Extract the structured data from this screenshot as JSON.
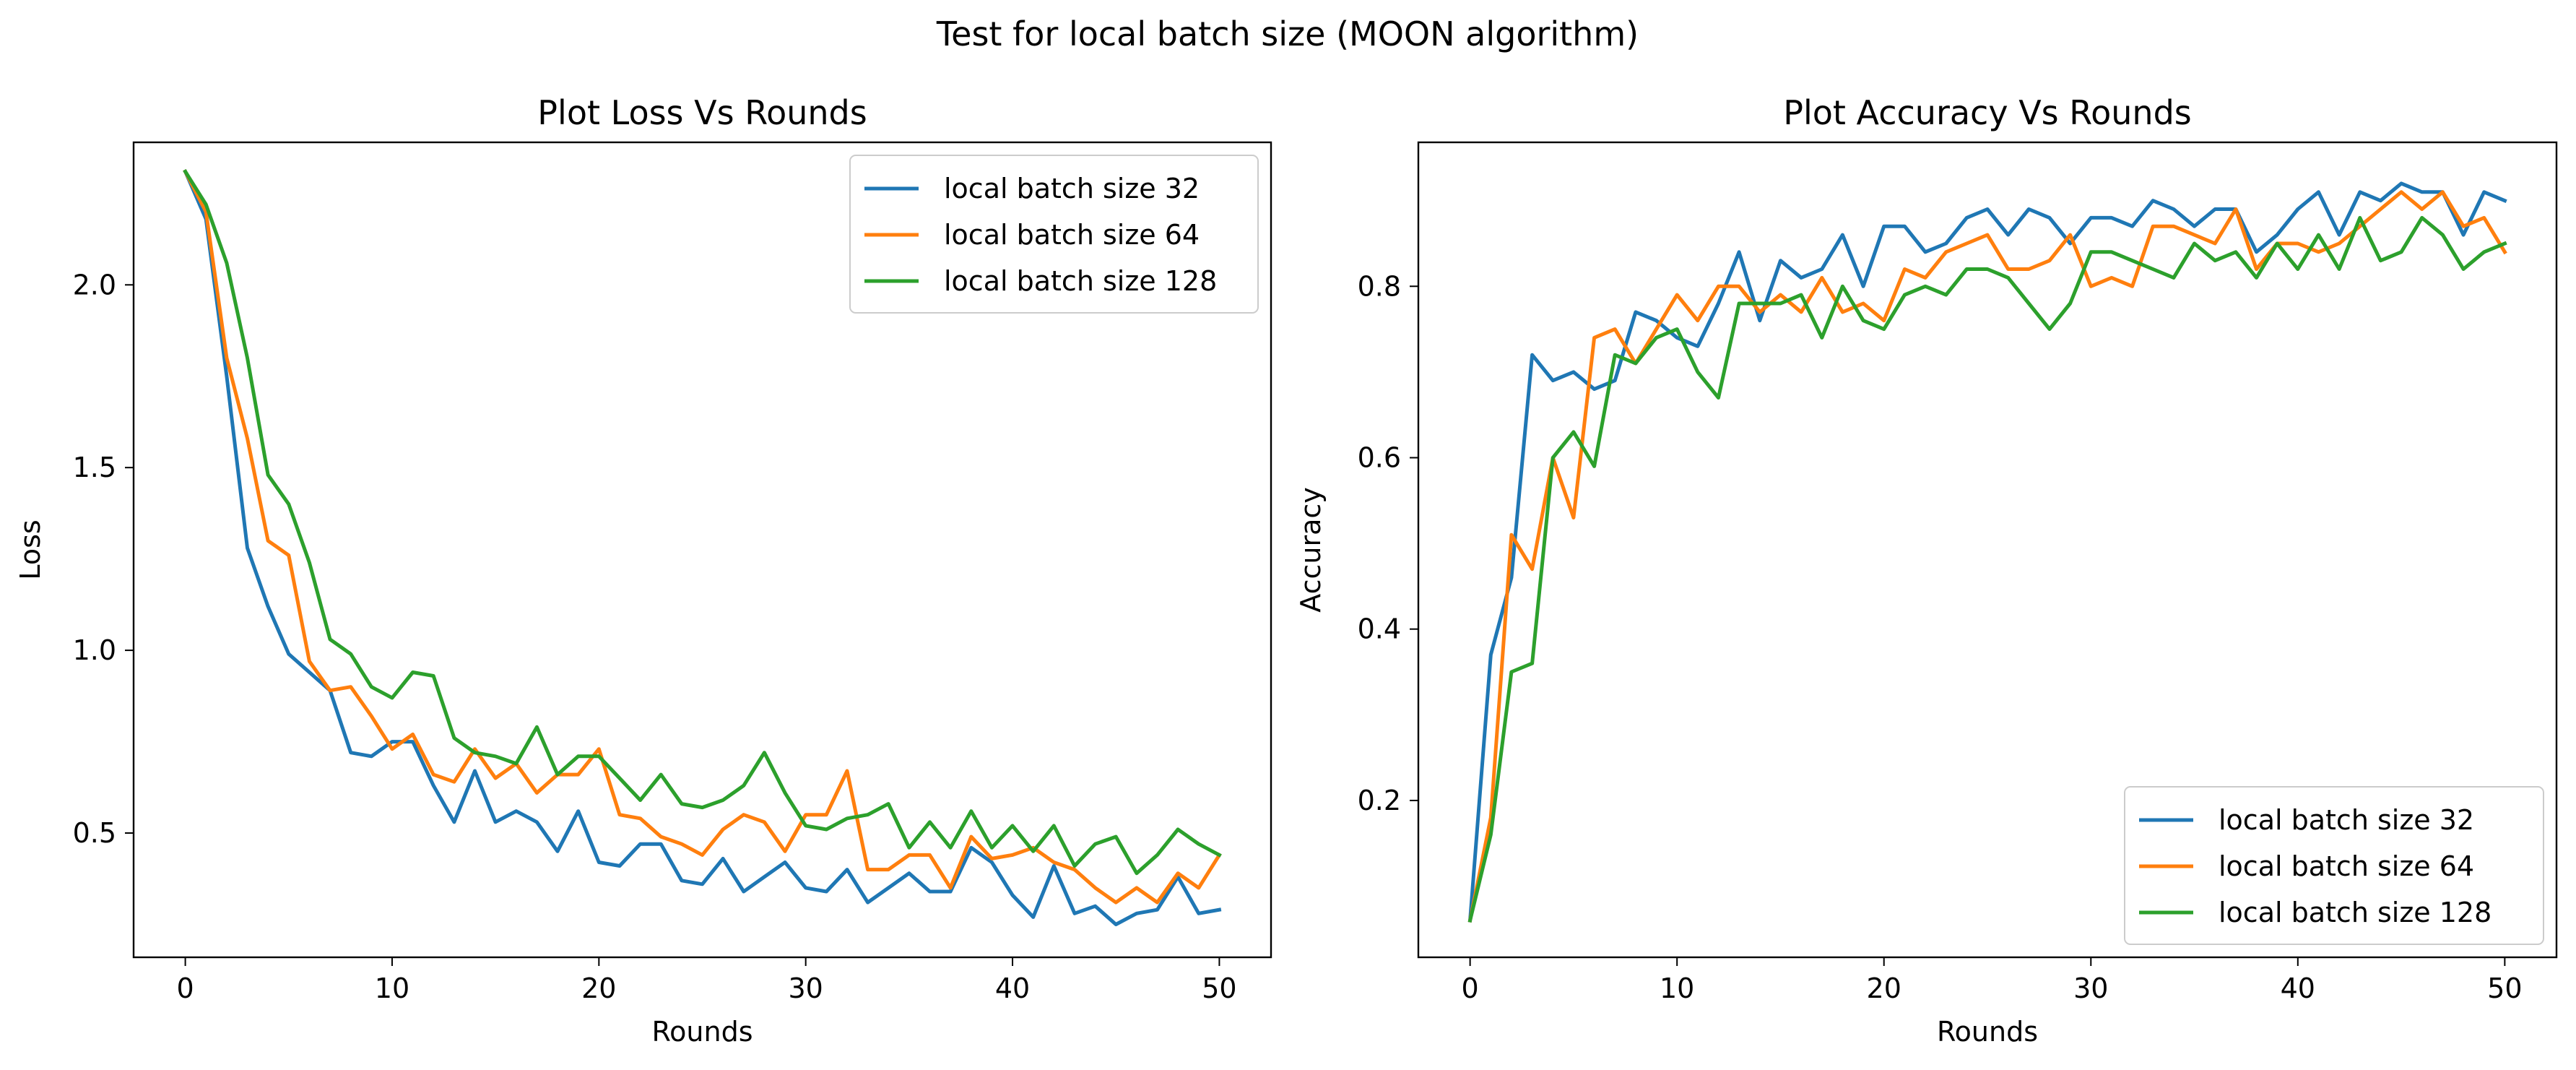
{
  "figure": {
    "suptitle": "Test for local batch size (MOON algorithm)"
  },
  "series_colors": [
    "#1f77b4",
    "#ff7f0e",
    "#2ca02c"
  ],
  "chart_data": [
    {
      "type": "line",
      "title": "Plot Loss Vs Rounds",
      "xlabel": "Rounds",
      "ylabel": "Loss",
      "xlim": [
        -2.5,
        52.5
      ],
      "ylim": [
        0.16,
        2.39
      ],
      "xticks": [
        0,
        10,
        20,
        30,
        40,
        50
      ],
      "yticks": [
        0.5,
        1.0,
        1.5,
        2.0
      ],
      "ytick_labels": [
        "0.5",
        "1.0",
        "1.5",
        "2.0"
      ],
      "grid": false,
      "legend_position": "upper right",
      "x": [
        0,
        1,
        2,
        3,
        4,
        5,
        6,
        7,
        8,
        9,
        10,
        11,
        12,
        13,
        14,
        15,
        16,
        17,
        18,
        19,
        20,
        21,
        22,
        23,
        24,
        25,
        26,
        27,
        28,
        29,
        30,
        31,
        32,
        33,
        34,
        35,
        36,
        37,
        38,
        39,
        40,
        41,
        42,
        43,
        44,
        45,
        46,
        47,
        48,
        49,
        50
      ],
      "series": [
        {
          "name": "local batch size 32",
          "values": [
            2.31,
            2.18,
            1.75,
            1.28,
            1.12,
            0.99,
            0.94,
            0.89,
            0.72,
            0.71,
            0.75,
            0.75,
            0.63,
            0.53,
            0.67,
            0.53,
            0.56,
            0.53,
            0.45,
            0.56,
            0.42,
            0.41,
            0.47,
            0.47,
            0.37,
            0.36,
            0.43,
            0.34,
            0.38,
            0.42,
            0.35,
            0.34,
            0.4,
            0.31,
            0.35,
            0.39,
            0.34,
            0.34,
            0.46,
            0.42,
            0.33,
            0.27,
            0.41,
            0.28,
            0.3,
            0.25,
            0.28,
            0.29,
            0.38,
            0.28,
            0.29
          ]
        },
        {
          "name": "local batch size 64",
          "values": [
            2.31,
            2.2,
            1.8,
            1.58,
            1.3,
            1.26,
            0.97,
            0.89,
            0.9,
            0.82,
            0.73,
            0.77,
            0.66,
            0.64,
            0.73,
            0.65,
            0.69,
            0.61,
            0.66,
            0.66,
            0.73,
            0.55,
            0.54,
            0.49,
            0.47,
            0.44,
            0.51,
            0.55,
            0.53,
            0.45,
            0.55,
            0.55,
            0.67,
            0.4,
            0.4,
            0.44,
            0.44,
            0.35,
            0.49,
            0.43,
            0.44,
            0.46,
            0.42,
            0.4,
            0.35,
            0.31,
            0.35,
            0.31,
            0.39,
            0.35,
            0.44
          ]
        },
        {
          "name": "local batch size 128",
          "values": [
            2.31,
            2.22,
            2.06,
            1.8,
            1.48,
            1.4,
            1.24,
            1.03,
            0.99,
            0.9,
            0.87,
            0.94,
            0.93,
            0.76,
            0.72,
            0.71,
            0.69,
            0.79,
            0.66,
            0.71,
            0.71,
            0.65,
            0.59,
            0.66,
            0.58,
            0.57,
            0.59,
            0.63,
            0.72,
            0.61,
            0.52,
            0.51,
            0.54,
            0.55,
            0.58,
            0.46,
            0.53,
            0.46,
            0.56,
            0.46,
            0.52,
            0.45,
            0.52,
            0.41,
            0.47,
            0.49,
            0.39,
            0.44,
            0.51,
            0.47,
            0.44
          ]
        }
      ]
    },
    {
      "type": "line",
      "title": "Plot Accuracy Vs Rounds",
      "xlabel": "Rounds",
      "ylabel": "Accuracy",
      "xlim": [
        -2.5,
        52.5
      ],
      "ylim": [
        0.017,
        0.968
      ],
      "xticks": [
        0,
        10,
        20,
        30,
        40,
        50
      ],
      "yticks": [
        0.2,
        0.4,
        0.6,
        0.8
      ],
      "ytick_labels": [
        "0.2",
        "0.4",
        "0.6",
        "0.8"
      ],
      "grid": false,
      "legend_position": "lower right",
      "x": [
        0,
        1,
        2,
        3,
        4,
        5,
        6,
        7,
        8,
        9,
        10,
        11,
        12,
        13,
        14,
        15,
        16,
        17,
        18,
        19,
        20,
        21,
        22,
        23,
        24,
        25,
        26,
        27,
        28,
        29,
        30,
        31,
        32,
        33,
        34,
        35,
        36,
        37,
        38,
        39,
        40,
        41,
        42,
        43,
        44,
        45,
        46,
        47,
        48,
        49,
        50
      ],
      "series": [
        {
          "name": "local batch size 32",
          "values": [
            0.06,
            0.37,
            0.46,
            0.72,
            0.69,
            0.7,
            0.68,
            0.69,
            0.77,
            0.76,
            0.74,
            0.73,
            0.78,
            0.84,
            0.76,
            0.83,
            0.81,
            0.82,
            0.86,
            0.8,
            0.87,
            0.87,
            0.84,
            0.85,
            0.88,
            0.89,
            0.86,
            0.89,
            0.88,
            0.85,
            0.88,
            0.88,
            0.87,
            0.9,
            0.89,
            0.87,
            0.89,
            0.89,
            0.84,
            0.86,
            0.89,
            0.91,
            0.86,
            0.91,
            0.9,
            0.92,
            0.91,
            0.91,
            0.86,
            0.91,
            0.9
          ]
        },
        {
          "name": "local batch size 64",
          "values": [
            0.06,
            0.18,
            0.51,
            0.47,
            0.6,
            0.53,
            0.74,
            0.75,
            0.71,
            0.75,
            0.79,
            0.76,
            0.8,
            0.8,
            0.77,
            0.79,
            0.77,
            0.81,
            0.77,
            0.78,
            0.76,
            0.82,
            0.81,
            0.84,
            0.85,
            0.86,
            0.82,
            0.82,
            0.83,
            0.86,
            0.8,
            0.81,
            0.8,
            0.87,
            0.87,
            0.86,
            0.85,
            0.89,
            0.82,
            0.85,
            0.85,
            0.84,
            0.85,
            0.87,
            0.89,
            0.91,
            0.89,
            0.91,
            0.87,
            0.88,
            0.84
          ]
        },
        {
          "name": "local batch size 128",
          "values": [
            0.06,
            0.16,
            0.35,
            0.36,
            0.6,
            0.63,
            0.59,
            0.72,
            0.71,
            0.74,
            0.75,
            0.7,
            0.67,
            0.78,
            0.78,
            0.78,
            0.79,
            0.74,
            0.8,
            0.76,
            0.75,
            0.79,
            0.8,
            0.79,
            0.82,
            0.82,
            0.81,
            0.78,
            0.75,
            0.78,
            0.84,
            0.84,
            0.83,
            0.82,
            0.81,
            0.85,
            0.83,
            0.84,
            0.81,
            0.85,
            0.82,
            0.86,
            0.82,
            0.88,
            0.83,
            0.84,
            0.88,
            0.86,
            0.82,
            0.84,
            0.85
          ]
        }
      ]
    }
  ]
}
